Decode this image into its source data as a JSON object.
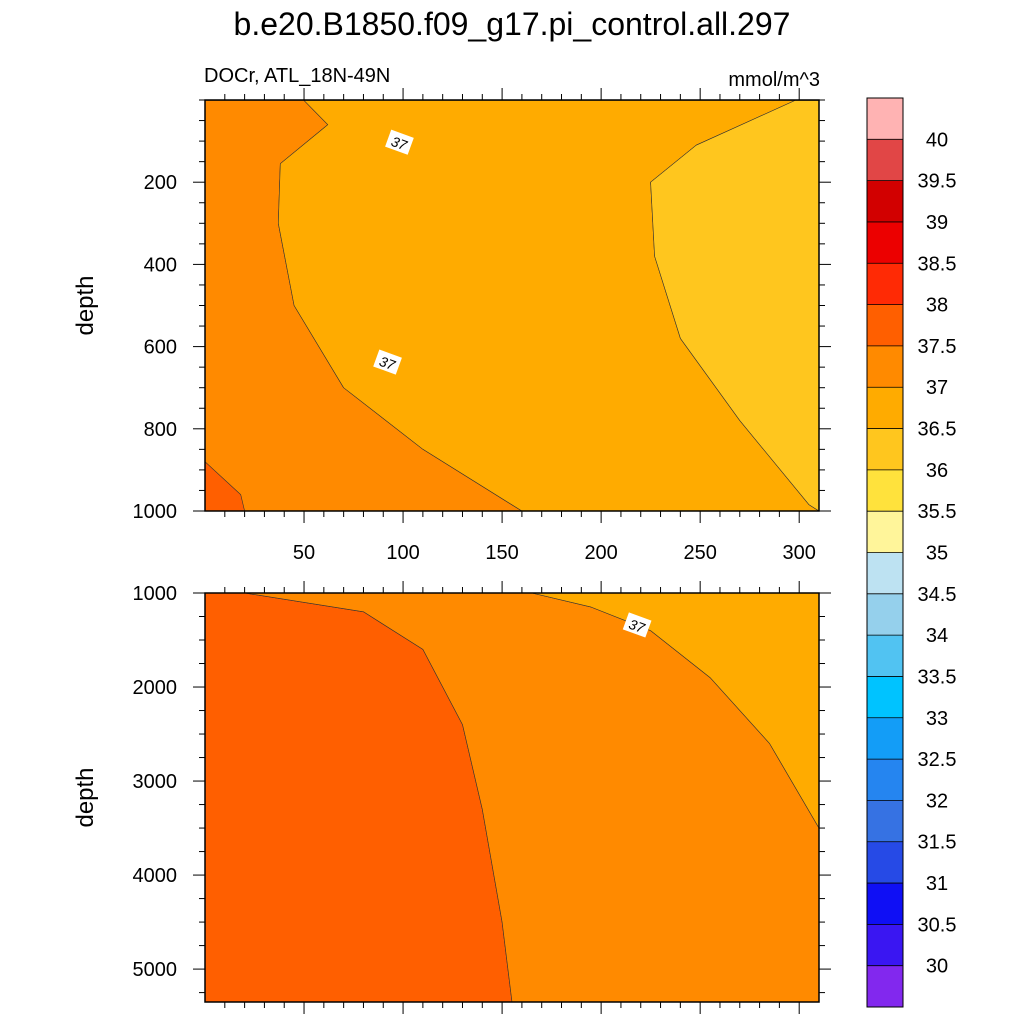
{
  "title": "b.e20.B1850.f09_g17.pi_control.all.297",
  "subtitle_left": "DOCr, ATL_18N-49N",
  "units": "mmol/m^3",
  "chart_data": [
    {
      "type": "filled-contour",
      "panel": "upper",
      "ylabel": "depth",
      "xlabel": "",
      "xlim": [
        0,
        310
      ],
      "ylim": [
        1000,
        0
      ],
      "x_ticks": [
        50,
        100,
        150,
        200,
        250,
        300
      ],
      "y_ticks": [
        200,
        400,
        600,
        800,
        1000
      ],
      "contour_labels": [
        "37",
        "37"
      ],
      "contour_label_positions": [
        {
          "x": 98,
          "depth": 105
        },
        {
          "x": 92,
          "depth": 640
        }
      ],
      "regions": [
        {
          "name": "37-37.5",
          "color": "#ff8a00",
          "boundary": [
            [
              0,
              1
            ],
            [
              50,
              1
            ],
            [
              62,
              60
            ],
            [
              38,
              155
            ],
            [
              37,
              300
            ],
            [
              45,
              500
            ],
            [
              70,
              700
            ],
            [
              110,
              850
            ],
            [
              160,
              1000
            ],
            [
              0,
              1000
            ]
          ]
        },
        {
          "name": "36.5-37",
          "color": "#ffab00",
          "boundary": [
            [
              50,
              1
            ],
            [
              298,
              1
            ],
            [
              248,
              110
            ],
            [
              225,
              200
            ],
            [
              227,
              380
            ],
            [
              240,
              580
            ],
            [
              270,
              780
            ],
            [
              305,
              985
            ],
            [
              310,
              1000
            ],
            [
              160,
              1000
            ],
            [
              110,
              850
            ],
            [
              70,
              700
            ],
            [
              45,
              500
            ],
            [
              37,
              300
            ],
            [
              38,
              155
            ],
            [
              62,
              60
            ]
          ]
        },
        {
          "name": "36-36.5",
          "color": "#ffc61e",
          "boundary": [
            [
              298,
              1
            ],
            [
              310,
              1
            ],
            [
              310,
              1000
            ],
            [
              305,
              985
            ],
            [
              270,
              780
            ],
            [
              240,
              580
            ],
            [
              227,
              380
            ],
            [
              225,
              200
            ],
            [
              248,
              110
            ]
          ]
        },
        {
          "name": "37.5-38",
          "color": "#ff5f00",
          "boundary": [
            [
              0,
              880
            ],
            [
              18,
              960
            ],
            [
              20,
              1000
            ],
            [
              0,
              1000
            ]
          ]
        }
      ]
    },
    {
      "type": "filled-contour",
      "panel": "lower",
      "ylabel": "depth",
      "xlabel": "",
      "xlim": [
        0,
        310
      ],
      "ylim": [
        5350,
        1000
      ],
      "x_ticks": [
        50,
        100,
        150,
        200,
        250,
        300
      ],
      "y_ticks": [
        1000,
        2000,
        3000,
        4000,
        5000
      ],
      "contour_labels": [
        "37"
      ],
      "contour_label_positions": [
        {
          "x": 218,
          "depth": 1350
        }
      ],
      "regions": [
        {
          "name": "37.5-38",
          "color": "#ff5f00",
          "boundary": [
            [
              0,
              1000
            ],
            [
              20,
              1000
            ],
            [
              80,
              1200
            ],
            [
              110,
              1600
            ],
            [
              130,
              2400
            ],
            [
              140,
              3300
            ],
            [
              150,
              4500
            ],
            [
              155,
              5350
            ],
            [
              0,
              5350
            ]
          ]
        },
        {
          "name": "37-37.5",
          "color": "#ff8a00",
          "boundary": [
            [
              20,
              1000
            ],
            [
              165,
              1000
            ],
            [
              195,
              1150
            ],
            [
              225,
              1400
            ],
            [
              255,
              1900
            ],
            [
              285,
              2600
            ],
            [
              310,
              3500
            ],
            [
              310,
              5350
            ],
            [
              155,
              5350
            ],
            [
              150,
              4500
            ],
            [
              140,
              3300
            ],
            [
              130,
              2400
            ],
            [
              110,
              1600
            ],
            [
              80,
              1200
            ]
          ]
        },
        {
          "name": "36.5-37",
          "color": "#ffab00",
          "boundary": [
            [
              165,
              1000
            ],
            [
              310,
              1000
            ],
            [
              310,
              3500
            ],
            [
              285,
              2600
            ],
            [
              255,
              1900
            ],
            [
              225,
              1400
            ],
            [
              195,
              1150
            ]
          ]
        }
      ]
    }
  ],
  "colorbar": {
    "labels": [
      "30",
      "30.5",
      "31",
      "31.5",
      "32",
      "32.5",
      "33",
      "33.5",
      "34",
      "34.5",
      "35",
      "35.5",
      "36",
      "36.5",
      "37",
      "37.5",
      "38",
      "38.5",
      "39",
      "39.5",
      "40"
    ],
    "colors": [
      "#8228ee",
      "#3a16f2",
      "#0f0ff5",
      "#264ae6",
      "#3672e3",
      "#2585f0",
      "#139df7",
      "#00c3ff",
      "#51c3f2",
      "#95d0ec",
      "#bde2f2",
      "#fff59a",
      "#ffe23c",
      "#ffc61e",
      "#ffab00",
      "#ff8a00",
      "#ff5f00",
      "#ff2a05",
      "#ec0000",
      "#d20000",
      "#e14646",
      "#ffb3b3"
    ]
  }
}
